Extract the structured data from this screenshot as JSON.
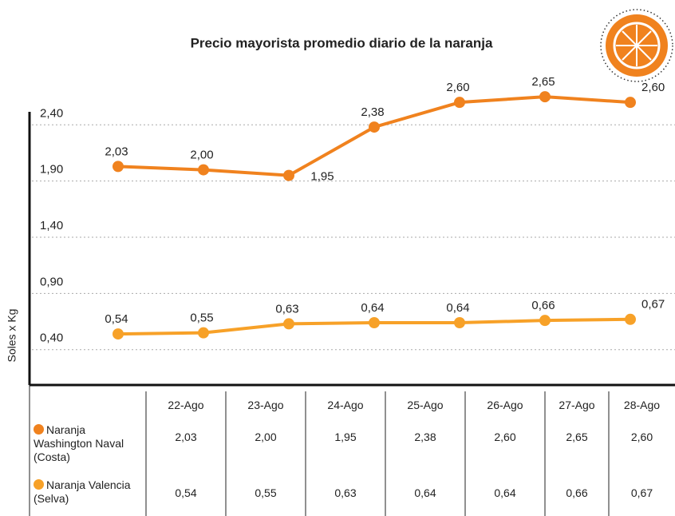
{
  "chart_data": {
    "type": "line",
    "title": "Precio mayorista promedio diario de la naranja",
    "y_label": "Soles x Kg",
    "categories": [
      "22-Ago",
      "23-Ago",
      "24-Ago",
      "25-Ago",
      "26-Ago",
      "27-Ago",
      "28-Ago"
    ],
    "series": [
      {
        "name": "Naranja Washington Naval (Costa)",
        "color": "#f0821e",
        "values": [
          2.03,
          2.0,
          1.95,
          2.38,
          2.6,
          2.65,
          2.6
        ],
        "value_labels": [
          "2,03",
          "2,00",
          "1,95",
          "2,38",
          "2,60",
          "2,65",
          "2,60"
        ]
      },
      {
        "name": "Naranja Valencia (Selva)",
        "color": "#f7a128",
        "values": [
          0.54,
          0.55,
          0.63,
          0.64,
          0.64,
          0.66,
          0.67
        ],
        "value_labels": [
          "0,54",
          "0,55",
          "0,63",
          "0,64",
          "0,64",
          "0,66",
          "0,67"
        ]
      }
    ],
    "ylim": [
      0.1,
      2.8
    ],
    "yticks": [
      {
        "value": 0.4,
        "label": "0,40"
      },
      {
        "value": 0.9,
        "label": "0,90"
      },
      {
        "value": 1.4,
        "label": "1,40"
      },
      {
        "value": 1.9,
        "label": "1,90"
      },
      {
        "value": 2.4,
        "label": "2,40"
      }
    ],
    "grid": true
  }
}
